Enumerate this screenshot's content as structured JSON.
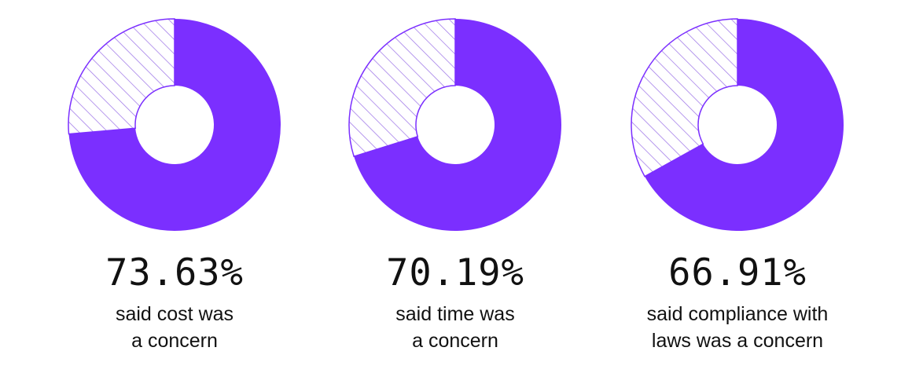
{
  "colors": {
    "accent": "#7B2FFF",
    "hatch": "#9F78E8",
    "text": "#111111",
    "background": "#ffffff"
  },
  "chart_data": [
    {
      "type": "pie",
      "value_percent": 73.63,
      "label": "73.63%",
      "caption_lines": [
        "said cost was",
        "a concern"
      ]
    },
    {
      "type": "pie",
      "value_percent": 70.19,
      "label": "70.19%",
      "caption_lines": [
        "said time was",
        "a concern"
      ]
    },
    {
      "type": "pie",
      "value_percent": 66.91,
      "label": "66.91%",
      "caption_lines": [
        "said compliance with",
        "laws was a concern"
      ]
    }
  ]
}
